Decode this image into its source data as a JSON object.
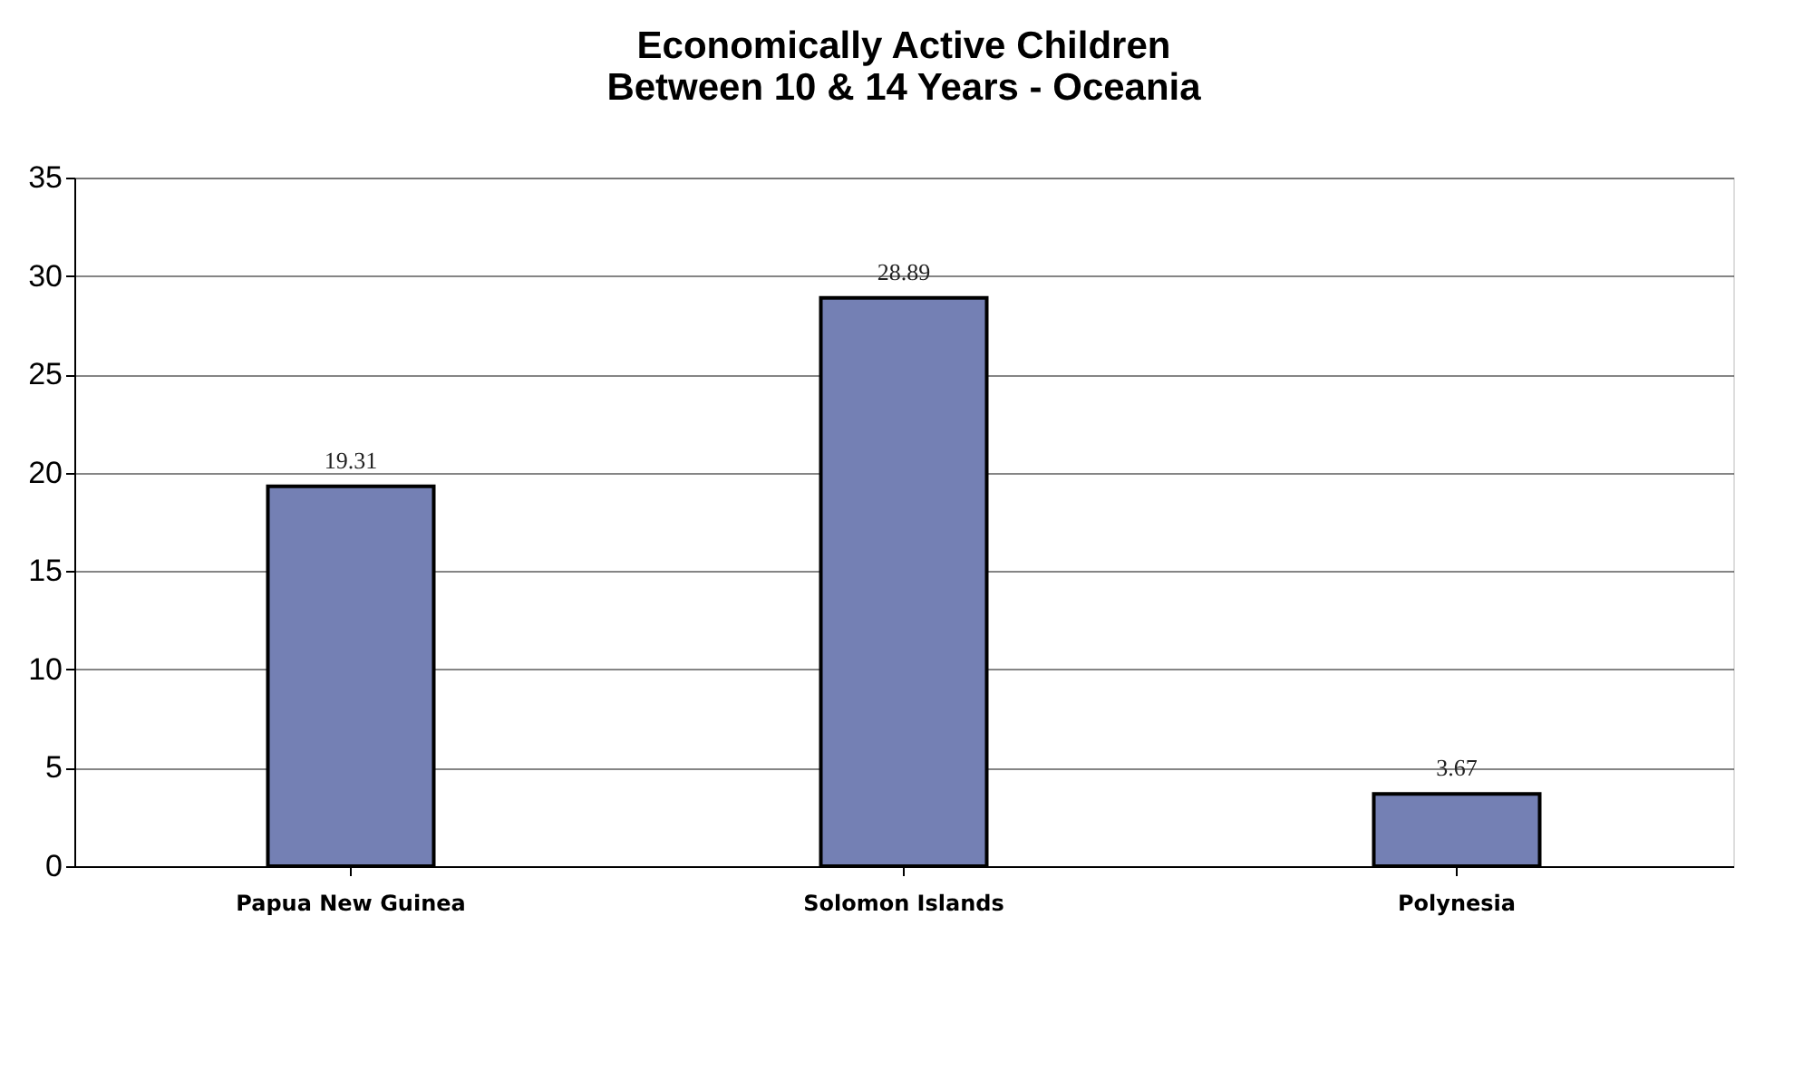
{
  "chart_data": {
    "type": "bar",
    "title": [
      "Economically Active Children",
      "Between 10 & 14 Years - Oceania"
    ],
    "categories": [
      "Papua New Guinea",
      "Solomon Islands",
      "Polynesia"
    ],
    "values": [
      19.31,
      28.89,
      3.67
    ],
    "color": "#7480b4",
    "ylim": [
      0,
      35
    ],
    "yticks": [
      0,
      5,
      10,
      15,
      20,
      25,
      30,
      35
    ],
    "grid": "y",
    "data_labels": true
  }
}
